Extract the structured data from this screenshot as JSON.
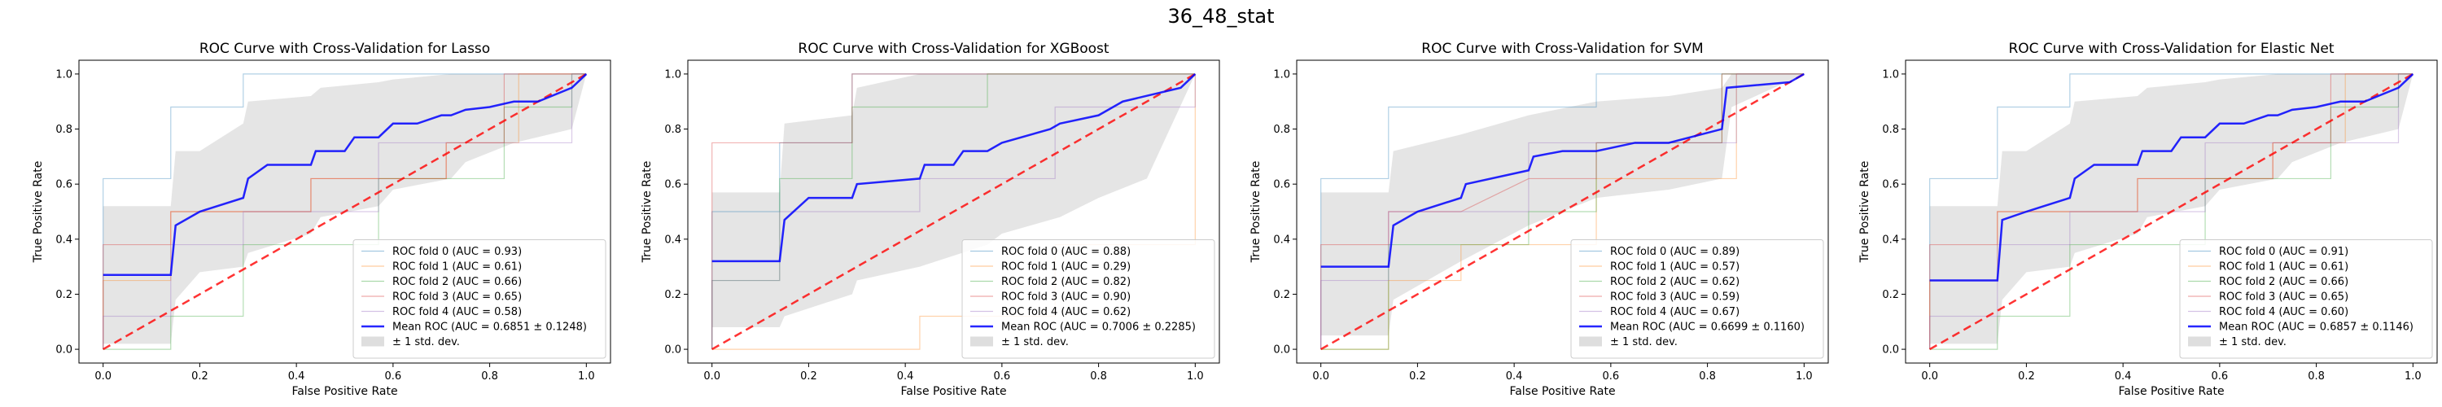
{
  "figure_title": "36_48_stat",
  "chart_data": [
    {
      "type": "line",
      "title": "ROC Curve with Cross-Validation for Lasso",
      "xlabel": "False Positive Rate",
      "ylabel": "True Positive Rate",
      "xlim": [
        -0.05,
        1.05
      ],
      "ylim": [
        -0.05,
        1.05
      ],
      "ticks": [
        "0.0",
        "0.2",
        "0.4",
        "0.6",
        "0.8",
        "1.0"
      ],
      "folds": [
        {
          "name": "ROC fold 0 (AUC = 0.93)",
          "color": "#1f77b4",
          "x": [
            0,
            0,
            0.14,
            0.14,
            0.29,
            0.29,
            1.0
          ],
          "y": [
            0,
            0.62,
            0.62,
            0.88,
            0.88,
            1.0,
            1.0
          ]
        },
        {
          "name": "ROC fold 1 (AUC = 0.61)",
          "color": "#ff7f0e",
          "x": [
            0,
            0,
            0.14,
            0.14,
            0.43,
            0.43,
            0.71,
            0.71,
            0.86,
            0.86,
            1.0
          ],
          "y": [
            0,
            0.25,
            0.25,
            0.5,
            0.5,
            0.62,
            0.62,
            0.75,
            0.75,
            1.0,
            1.0
          ]
        },
        {
          "name": "ROC fold 2 (AUC = 0.66)",
          "color": "#2ca02c",
          "x": [
            0,
            0.14,
            0.14,
            0.29,
            0.29,
            0.57,
            0.57,
            0.83,
            0.83,
            0.97,
            0.97,
            1.0
          ],
          "y": [
            0,
            0,
            0.12,
            0.12,
            0.38,
            0.38,
            0.62,
            0.62,
            0.88,
            0.88,
            1.0,
            1.0
          ]
        },
        {
          "name": "ROC fold 3 (AUC = 0.65)",
          "color": "#d62728",
          "x": [
            0,
            0,
            0.14,
            0.14,
            0.43,
            0.43,
            0.71,
            0.71,
            0.83,
            0.83,
            1.0
          ],
          "y": [
            0,
            0.38,
            0.38,
            0.5,
            0.5,
            0.62,
            0.62,
            0.75,
            0.75,
            1.0,
            1.0
          ]
        },
        {
          "name": "ROC fold 4 (AUC = 0.58)",
          "color": "#9467bd",
          "x": [
            0,
            0,
            0.14,
            0.14,
            0.29,
            0.29,
            0.57,
            0.57,
            0.97,
            0.97,
            1.0
          ],
          "y": [
            0,
            0.12,
            0.12,
            0.38,
            0.38,
            0.5,
            0.5,
            0.75,
            0.75,
            1.0,
            1.0
          ]
        }
      ],
      "mean": {
        "name": "Mean ROC (AUC = 0.6851 ± 0.1248)",
        "color": "#0000ff",
        "x": [
          0,
          0.14,
          0.15,
          0.2,
          0.29,
          0.3,
          0.34,
          0.43,
          0.44,
          0.5,
          0.52,
          0.57,
          0.6,
          0.65,
          0.7,
          0.72,
          0.75,
          0.8,
          0.85,
          0.9,
          0.97,
          1.0
        ],
        "y": [
          0.27,
          0.27,
          0.45,
          0.5,
          0.55,
          0.62,
          0.67,
          0.67,
          0.72,
          0.72,
          0.77,
          0.77,
          0.82,
          0.82,
          0.85,
          0.85,
          0.87,
          0.88,
          0.9,
          0.9,
          0.95,
          1.0
        ]
      },
      "band": {
        "name": "± 1 std. dev.",
        "color": "#bebebe",
        "x": [
          0,
          0.14,
          0.15,
          0.2,
          0.29,
          0.3,
          0.43,
          0.45,
          0.57,
          0.6,
          0.72,
          0.75,
          0.85,
          0.97,
          1.0
        ],
        "upper": [
          0.52,
          0.52,
          0.72,
          0.72,
          0.82,
          0.9,
          0.92,
          0.95,
          0.97,
          0.98,
          1.0,
          1.0,
          1.0,
          1.0,
          1.0
        ],
        "lower": [
          0.02,
          0.02,
          0.18,
          0.28,
          0.3,
          0.35,
          0.42,
          0.48,
          0.52,
          0.58,
          0.62,
          0.68,
          0.75,
          0.8,
          1.0
        ]
      }
    },
    {
      "type": "line",
      "title": "ROC Curve with Cross-Validation for XGBoost",
      "xlabel": "False Positive Rate",
      "ylabel": "True Positive Rate",
      "xlim": [
        -0.05,
        1.05
      ],
      "ylim": [
        -0.05,
        1.05
      ],
      "ticks": [
        "0.0",
        "0.2",
        "0.4",
        "0.6",
        "0.8",
        "1.0"
      ],
      "folds": [
        {
          "name": "ROC fold 0 (AUC = 0.88)",
          "color": "#1f77b4",
          "x": [
            0,
            0,
            0.14,
            0.14,
            0.29,
            0.29,
            1.0
          ],
          "y": [
            0,
            0.5,
            0.5,
            0.75,
            0.75,
            1.0,
            1.0
          ]
        },
        {
          "name": "ROC fold 1 (AUC = 0.29)",
          "color": "#ff7f0e",
          "x": [
            0,
            0.43,
            0.43,
            0.71,
            0.71,
            1.0,
            1.0
          ],
          "y": [
            0,
            0,
            0.12,
            0.12,
            0.38,
            0.38,
            1.0
          ]
        },
        {
          "name": "ROC fold 2 (AUC = 0.82)",
          "color": "#2ca02c",
          "x": [
            0,
            0,
            0.14,
            0.14,
            0.29,
            0.29,
            0.57,
            0.57,
            1.0
          ],
          "y": [
            0,
            0.25,
            0.25,
            0.62,
            0.62,
            0.88,
            0.88,
            1.0,
            1.0
          ]
        },
        {
          "name": "ROC fold 3 (AUC = 0.90)",
          "color": "#d62728",
          "x": [
            0,
            0,
            0.14,
            0.14,
            0.29,
            0.29,
            1.0
          ],
          "y": [
            0,
            0.75,
            0.75,
            0.75,
            0.75,
            1.0,
            1.0
          ]
        },
        {
          "name": "ROC fold 4 (AUC = 0.62)",
          "color": "#9467bd",
          "x": [
            0,
            0,
            0.14,
            0.14,
            0.43,
            0.43,
            0.71,
            0.71,
            1.0,
            1.0
          ],
          "y": [
            0,
            0.25,
            0.25,
            0.5,
            0.5,
            0.62,
            0.62,
            0.88,
            0.88,
            1.0
          ]
        }
      ],
      "mean": {
        "name": "Mean ROC (AUC = 0.7006 ± 0.2285)",
        "color": "#0000ff",
        "x": [
          0,
          0.14,
          0.15,
          0.2,
          0.29,
          0.3,
          0.43,
          0.44,
          0.5,
          0.52,
          0.57,
          0.6,
          0.7,
          0.72,
          0.8,
          0.85,
          0.97,
          1.0
        ],
        "y": [
          0.32,
          0.32,
          0.47,
          0.55,
          0.55,
          0.6,
          0.62,
          0.67,
          0.67,
          0.72,
          0.72,
          0.75,
          0.8,
          0.82,
          0.85,
          0.9,
          0.95,
          1.0
        ]
      },
      "band": {
        "name": "± 1 std. dev.",
        "color": "#bebebe",
        "x": [
          0,
          0.14,
          0.15,
          0.29,
          0.3,
          0.43,
          0.57,
          0.6,
          0.72,
          0.8,
          0.9,
          1.0
        ],
        "upper": [
          0.57,
          0.57,
          0.82,
          0.85,
          0.95,
          1.0,
          1.0,
          1.0,
          1.0,
          1.0,
          1.0,
          1.0
        ],
        "lower": [
          0.08,
          0.08,
          0.12,
          0.2,
          0.25,
          0.3,
          0.38,
          0.42,
          0.48,
          0.55,
          0.62,
          1.0
        ]
      }
    },
    {
      "type": "line",
      "title": "ROC Curve with Cross-Validation for SVM",
      "xlabel": "False Positive Rate",
      "ylabel": "True Positive Rate",
      "xlim": [
        -0.05,
        1.05
      ],
      "ylim": [
        -0.05,
        1.05
      ],
      "ticks": [
        "0.0",
        "0.2",
        "0.4",
        "0.6",
        "0.8",
        "1.0"
      ],
      "folds": [
        {
          "name": "ROC fold 0 (AUC = 0.89)",
          "color": "#1f77b4",
          "x": [
            0,
            0,
            0.14,
            0.14,
            0.57,
            0.57,
            1.0
          ],
          "y": [
            0,
            0.62,
            0.62,
            0.88,
            0.88,
            1.0,
            1.0
          ]
        },
        {
          "name": "ROC fold 1 (AUC = 0.57)",
          "color": "#ff7f0e",
          "x": [
            0,
            0.14,
            0.14,
            0.29,
            0.29,
            0.57,
            0.57,
            0.86,
            0.86,
            1.0
          ],
          "y": [
            0,
            0,
            0.25,
            0.25,
            0.38,
            0.38,
            0.62,
            0.62,
            1.0,
            1.0
          ]
        },
        {
          "name": "ROC fold 2 (AUC = 0.62)",
          "color": "#2ca02c",
          "x": [
            0,
            0.14,
            0.14,
            0.43,
            0.43,
            0.57,
            0.57,
            0.83,
            0.83,
            1.0
          ],
          "y": [
            0,
            0,
            0.38,
            0.38,
            0.5,
            0.5,
            0.75,
            0.75,
            1.0,
            1.0
          ]
        },
        {
          "name": "ROC fold 3 (AUC = 0.59)",
          "color": "#d62728",
          "x": [
            0,
            0,
            0.14,
            0.14,
            0.29,
            0.43,
            0.57,
            0.57,
            0.83,
            0.83,
            1.0
          ],
          "y": [
            0,
            0.38,
            0.38,
            0.5,
            0.5,
            0.62,
            0.62,
            0.75,
            0.75,
            1.0,
            1.0
          ]
        },
        {
          "name": "ROC fold 4 (AUC = 0.67)",
          "color": "#9467bd",
          "x": [
            0,
            0,
            0.14,
            0.14,
            0.43,
            0.43,
            0.86,
            0.86,
            1.0
          ],
          "y": [
            0,
            0.25,
            0.25,
            0.5,
            0.5,
            0.75,
            0.75,
            1.0,
            1.0
          ]
        }
      ],
      "mean": {
        "name": "Mean ROC (AUC = 0.6699 ± 0.1160)",
        "color": "#0000ff",
        "x": [
          0,
          0.14,
          0.15,
          0.2,
          0.29,
          0.3,
          0.43,
          0.44,
          0.5,
          0.57,
          0.65,
          0.72,
          0.83,
          0.84,
          0.97,
          1.0
        ],
        "y": [
          0.3,
          0.3,
          0.45,
          0.5,
          0.55,
          0.6,
          0.65,
          0.7,
          0.72,
          0.72,
          0.75,
          0.75,
          0.8,
          0.95,
          0.97,
          1.0
        ]
      },
      "band": {
        "name": "± 1 std. dev.",
        "color": "#bebebe",
        "x": [
          0,
          0.14,
          0.15,
          0.29,
          0.43,
          0.57,
          0.72,
          0.83,
          0.85,
          1.0
        ],
        "upper": [
          0.57,
          0.57,
          0.72,
          0.78,
          0.85,
          0.9,
          0.92,
          0.95,
          1.0,
          1.0
        ],
        "lower": [
          0.05,
          0.05,
          0.18,
          0.32,
          0.45,
          0.55,
          0.58,
          0.62,
          0.88,
          1.0
        ]
      }
    },
    {
      "type": "line",
      "title": "ROC Curve with Cross-Validation for Elastic Net",
      "xlabel": "False Positive Rate",
      "ylabel": "True Positive Rate",
      "xlim": [
        -0.05,
        1.05
      ],
      "ylim": [
        -0.05,
        1.05
      ],
      "ticks": [
        "0.0",
        "0.2",
        "0.4",
        "0.6",
        "0.8",
        "1.0"
      ],
      "folds": [
        {
          "name": "ROC fold 0 (AUC = 0.91)",
          "color": "#1f77b4",
          "x": [
            0,
            0,
            0.14,
            0.14,
            0.29,
            0.29,
            1.0
          ],
          "y": [
            0,
            0.62,
            0.62,
            0.88,
            0.88,
            1.0,
            1.0
          ]
        },
        {
          "name": "ROC fold 1 (AUC = 0.61)",
          "color": "#ff7f0e",
          "x": [
            0,
            0,
            0.14,
            0.14,
            0.43,
            0.43,
            0.71,
            0.71,
            0.86,
            0.86,
            1.0
          ],
          "y": [
            0,
            0.25,
            0.25,
            0.5,
            0.5,
            0.62,
            0.62,
            0.75,
            0.75,
            1.0,
            1.0
          ]
        },
        {
          "name": "ROC fold 2 (AUC = 0.66)",
          "color": "#2ca02c",
          "x": [
            0,
            0.14,
            0.14,
            0.29,
            0.29,
            0.57,
            0.57,
            0.83,
            0.83,
            0.97,
            0.97,
            1.0
          ],
          "y": [
            0,
            0,
            0.12,
            0.12,
            0.38,
            0.38,
            0.62,
            0.62,
            0.88,
            0.88,
            1.0,
            1.0
          ]
        },
        {
          "name": "ROC fold 3 (AUC = 0.65)",
          "color": "#d62728",
          "x": [
            0,
            0,
            0.14,
            0.14,
            0.43,
            0.43,
            0.71,
            0.71,
            0.83,
            0.83,
            1.0
          ],
          "y": [
            0,
            0.38,
            0.38,
            0.5,
            0.5,
            0.62,
            0.62,
            0.75,
            0.75,
            1.0,
            1.0
          ]
        },
        {
          "name": "ROC fold 4 (AUC = 0.60)",
          "color": "#9467bd",
          "x": [
            0,
            0,
            0.14,
            0.14,
            0.29,
            0.29,
            0.57,
            0.57,
            0.97,
            0.97,
            1.0
          ],
          "y": [
            0,
            0.12,
            0.12,
            0.38,
            0.38,
            0.5,
            0.5,
            0.75,
            0.75,
            1.0,
            1.0
          ]
        }
      ],
      "mean": {
        "name": "Mean ROC (AUC = 0.6857 ± 0.1146)",
        "color": "#0000ff",
        "x": [
          0,
          0.14,
          0.15,
          0.2,
          0.29,
          0.3,
          0.34,
          0.43,
          0.44,
          0.5,
          0.52,
          0.57,
          0.6,
          0.65,
          0.7,
          0.72,
          0.75,
          0.8,
          0.85,
          0.9,
          0.97,
          1.0
        ],
        "y": [
          0.25,
          0.25,
          0.47,
          0.5,
          0.55,
          0.62,
          0.67,
          0.67,
          0.72,
          0.72,
          0.77,
          0.77,
          0.82,
          0.82,
          0.85,
          0.85,
          0.87,
          0.88,
          0.9,
          0.9,
          0.95,
          1.0
        ]
      },
      "band": {
        "name": "± 1 std. dev.",
        "color": "#bebebe",
        "x": [
          0,
          0.14,
          0.15,
          0.2,
          0.29,
          0.3,
          0.43,
          0.45,
          0.57,
          0.6,
          0.72,
          0.75,
          0.85,
          0.97,
          1.0
        ],
        "upper": [
          0.52,
          0.52,
          0.72,
          0.72,
          0.82,
          0.9,
          0.92,
          0.95,
          0.97,
          0.98,
          1.0,
          1.0,
          1.0,
          1.0,
          1.0
        ],
        "lower": [
          0.02,
          0.02,
          0.18,
          0.28,
          0.3,
          0.35,
          0.42,
          0.48,
          0.52,
          0.58,
          0.62,
          0.68,
          0.75,
          0.8,
          1.0
        ]
      }
    }
  ],
  "chance_line_color": "#ff0000"
}
